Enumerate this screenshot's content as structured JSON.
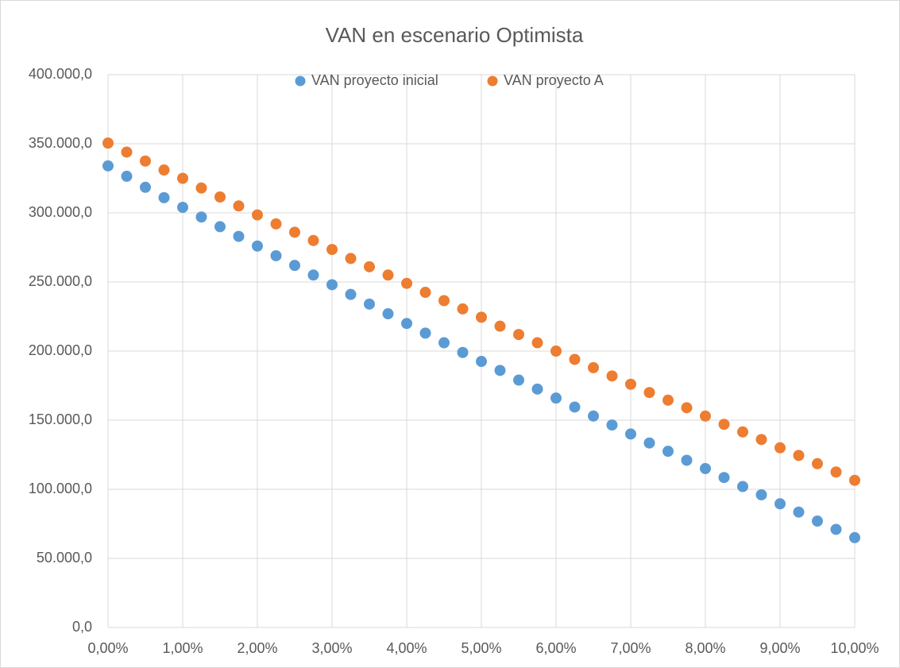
{
  "chart_data": {
    "type": "scatter",
    "title": "VAN en escenario Optimista",
    "x": [
      0,
      0.25,
      0.5,
      0.75,
      1,
      1.25,
      1.5,
      1.75,
      2,
      2.25,
      2.5,
      2.75,
      3,
      3.25,
      3.5,
      3.75,
      4,
      4.25,
      4.5,
      4.75,
      5,
      5.25,
      5.5,
      5.75,
      6,
      6.25,
      6.5,
      6.75,
      7,
      7.25,
      7.5,
      7.75,
      8,
      8.25,
      8.5,
      8.75,
      9,
      9.25,
      9.5,
      9.75,
      10
    ],
    "series": [
      {
        "name": "VAN proyecto inicial",
        "color": "#5b9bd5",
        "values": [
          334000,
          326500,
          318500,
          311000,
          304000,
          297000,
          290000,
          283000,
          276000,
          269000,
          262000,
          255000,
          248000,
          241000,
          234000,
          227000,
          220000,
          213000,
          206000,
          199000,
          192500,
          186000,
          179000,
          172500,
          166000,
          159500,
          153000,
          146500,
          140000,
          133500,
          127500,
          121000,
          115000,
          108500,
          102000,
          96000,
          89500,
          83500,
          77000,
          71000,
          65000
        ]
      },
      {
        "name": "VAN proyecto A",
        "color": "#ed7d31",
        "values": [
          350500,
          344000,
          337500,
          331000,
          325000,
          318000,
          311500,
          305000,
          298500,
          292000,
          286000,
          280000,
          273500,
          267000,
          261000,
          255000,
          249000,
          242500,
          236500,
          230500,
          224500,
          218000,
          212000,
          206000,
          200000,
          194000,
          188000,
          182000,
          176000,
          170000,
          164500,
          159000,
          153000,
          147000,
          141500,
          136000,
          130000,
          124500,
          118500,
          112500,
          106500
        ]
      }
    ],
    "xlim": [
      0,
      10
    ],
    "xticks": [
      {
        "value": 0,
        "label": "0,00%"
      },
      {
        "value": 1,
        "label": "1,00%"
      },
      {
        "value": 2,
        "label": "2,00%"
      },
      {
        "value": 3,
        "label": "3,00%"
      },
      {
        "value": 4,
        "label": "4,00%"
      },
      {
        "value": 5,
        "label": "5,00%"
      },
      {
        "value": 6,
        "label": "6,00%"
      },
      {
        "value": 7,
        "label": "7,00%"
      },
      {
        "value": 8,
        "label": "8,00%"
      },
      {
        "value": 9,
        "label": "9,00%"
      },
      {
        "value": 10,
        "label": "10,00%"
      }
    ],
    "ylim": [
      0,
      400000
    ],
    "yticks": [
      {
        "value": 0,
        "label": "0,0"
      },
      {
        "value": 50000,
        "label": "50.000,0"
      },
      {
        "value": 100000,
        "label": "100.000,0"
      },
      {
        "value": 150000,
        "label": "150.000,0"
      },
      {
        "value": 200000,
        "label": "200.000,0"
      },
      {
        "value": 250000,
        "label": "250.000,0"
      },
      {
        "value": 300000,
        "label": "300.000,0"
      },
      {
        "value": 350000,
        "label": "350.000,0"
      },
      {
        "value": 400000,
        "label": "400.000,0"
      }
    ],
    "grid": true,
    "legend": "top"
  }
}
